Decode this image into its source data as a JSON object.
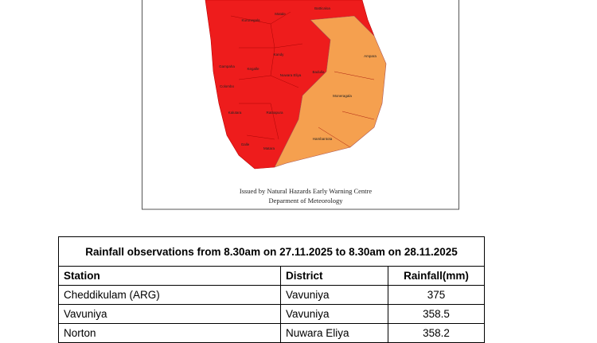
{
  "map": {
    "labels": [
      "Batticaloa",
      "Kurunegala",
      "Matale",
      "Kandy",
      "Gampaha",
      "Kegalle",
      "Nuwara Eliya",
      "Badulla",
      "Ampara",
      "Colombo",
      "Moneragala",
      "Kalutara",
      "Ratnapura",
      "Hambantota",
      "Galle",
      "Matara"
    ],
    "caption": [
      "Issued by Natural Hazards Early Warning Centre",
      "Deparment of Meteorology"
    ]
  },
  "table": {
    "title": "Rainfall observations from 8.30am on 27.11.2025 to 8.30am on 28.11.2025",
    "headers": [
      "Station",
      "District",
      "Rainfall(mm)"
    ],
    "rows": [
      [
        "Cheddikulam (ARG)",
        "Vavuniya",
        "375"
      ],
      [
        "Vavuniya",
        "Vavuniya",
        "358.5"
      ],
      [
        "Norton",
        "Nuwara Eliya",
        "358.2"
      ]
    ]
  }
}
